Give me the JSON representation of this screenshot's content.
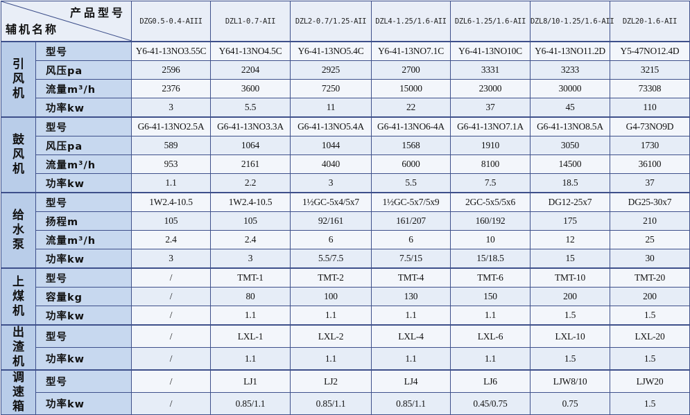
{
  "header": {
    "product_label": "产品型号",
    "aux_label": "辅机名称",
    "models": [
      "DZG0.5-0.4-AIII",
      "DZL1-0.7-AII",
      "DZL2-0.7/1.25-AII",
      "DZL4-1.25/1.6-AII",
      "DZL6-1.25/1.6-AII",
      "DZL8/10-1.25/1.6-AII",
      "DZL20-1.6-AII"
    ]
  },
  "groups": [
    {
      "name": "引风机",
      "rows": [
        {
          "label": "型号",
          "values": [
            "Y6-41-13NO3.55C",
            "Y641-13NO4.5C",
            "Y6-41-13NO5.4C",
            "Y6-41-13NO7.1C",
            "Y6-41-13NO10C",
            "Y6-41-13NO11.2D",
            "Y5-47NO12.4D"
          ]
        },
        {
          "label": "风压pa",
          "values": [
            "2596",
            "2204",
            "2925",
            "2700",
            "3331",
            "3233",
            "3215"
          ]
        },
        {
          "label": "流量m³/h",
          "values": [
            "2376",
            "3600",
            "7250",
            "15000",
            "23000",
            "30000",
            "73308"
          ]
        },
        {
          "label": "功率kw",
          "values": [
            "3",
            "5.5",
            "11",
            "22",
            "37",
            "45",
            "110"
          ]
        }
      ]
    },
    {
      "name": "鼓风机",
      "rows": [
        {
          "label": "型号",
          "values": [
            "G6-41-13NO2.5A",
            "G6-41-13NO3.3A",
            "G6-41-13NO5.4A",
            "G6-41-13NO6-4A",
            "G6-41-13NO7.1A",
            "G6-41-13NO8.5A",
            "G4-73NO9D"
          ]
        },
        {
          "label": "风压pa",
          "values": [
            "589",
            "1064",
            "1044",
            "1568",
            "1910",
            "3050",
            "1730"
          ]
        },
        {
          "label": "流量m³/h",
          "values": [
            "953",
            "2161",
            "4040",
            "6000",
            "8100",
            "14500",
            "36100"
          ]
        },
        {
          "label": "功率kw",
          "values": [
            "1.1",
            "2.2",
            "3",
            "5.5",
            "7.5",
            "18.5",
            "37"
          ]
        }
      ]
    },
    {
      "name": "给水泵",
      "rows": [
        {
          "label": "型号",
          "values": [
            "1W2.4-10.5",
            "1W2.4-10.5",
            "1½GC-5x4/5x7",
            "1½GC-5x7/5x9",
            "2GC-5x5/5x6",
            "DG12-25x7",
            "DG25-30x7"
          ]
        },
        {
          "label": "扬程m",
          "values": [
            "105",
            "105",
            "92/161",
            "161/207",
            "160/192",
            "175",
            "210"
          ]
        },
        {
          "label": "流量m³/h",
          "values": [
            "2.4",
            "2.4",
            "6",
            "6",
            "10",
            "12",
            "25"
          ]
        },
        {
          "label": "功率kw",
          "values": [
            "3",
            "3",
            "5.5/7.5",
            "7.5/15",
            "15/18.5",
            "15",
            "30"
          ]
        }
      ]
    },
    {
      "name": "上煤机",
      "rows": [
        {
          "label": "型号",
          "values": [
            "/",
            "TMT-1",
            "TMT-2",
            "TMT-4",
            "TMT-6",
            "TMT-10",
            "TMT-20"
          ]
        },
        {
          "label": "容量kg",
          "values": [
            "/",
            "80",
            "100",
            "130",
            "150",
            "200",
            "200"
          ]
        },
        {
          "label": "功率kw",
          "values": [
            "/",
            "1.1",
            "1.1",
            "1.1",
            "1.1",
            "1.5",
            "1.5"
          ]
        }
      ]
    },
    {
      "name": "出渣机",
      "rows": [
        {
          "label": "型号",
          "values": [
            "/",
            "LXL-1",
            "LXL-2",
            "LXL-4",
            "LXL-6",
            "LXL-10",
            "LXL-20"
          ]
        },
        {
          "label": "功率kw",
          "values": [
            "/",
            "1.1",
            "1.1",
            "1.1",
            "1.1",
            "1.5",
            "1.5"
          ]
        }
      ]
    },
    {
      "name": "调速箱",
      "rows": [
        {
          "label": "型号",
          "values": [
            "/",
            "LJ1",
            "LJ2",
            "LJ4",
            "LJ6",
            "LJW8/10",
            "LJW20"
          ]
        },
        {
          "label": "功率kw",
          "values": [
            "/",
            "0.85/1.1",
            "0.85/1.1",
            "0.85/1.1",
            "0.45/0.75",
            "0.75",
            "1.5"
          ]
        }
      ]
    }
  ]
}
